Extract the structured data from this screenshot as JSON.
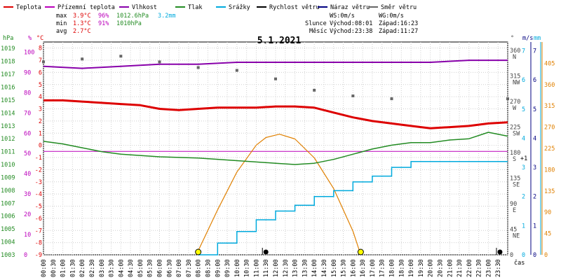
{
  "chart_data": {
    "type": "line",
    "title": "5.1.2021",
    "legend": [
      {
        "label": "Teplota",
        "color": "#dd0000"
      },
      {
        "label": "Přízemní teplota",
        "color": "#bb00bb"
      },
      {
        "label": "Vlhkost",
        "color": "#8800aa"
      },
      {
        "label": "Tlak",
        "color": "#228b22"
      },
      {
        "label": "Srážky",
        "color": "#00aadd"
      },
      {
        "label": "Rychlost větru",
        "color": "#000000"
      },
      {
        "label": "Náraz větru",
        "color": "#000080"
      },
      {
        "label": "Směr větru",
        "color": "#666666"
      }
    ],
    "stats": {
      "max": {
        "label": "max",
        "temp": "3.9°C",
        "hum": "96%",
        "press": "1012.6hPa",
        "rain": "3.2mm"
      },
      "min": {
        "label": "min",
        "temp": "1.3°C",
        "hum": "91%",
        "press": "1010hPa"
      },
      "avg": {
        "label": "avg",
        "temp": "2.7°C"
      }
    },
    "wind_info": {
      "ws": "WS:0m/s",
      "wg": "WG:0m/s"
    },
    "sun": {
      "label": "Slunce",
      "rise": "Východ:08:01",
      "set": "Západ:16:23"
    },
    "moon": {
      "label": "Měsíc",
      "rise": "Východ:23:38",
      "set": "Západ:11:27"
    },
    "axes": {
      "hpa": {
        "label": "hPa",
        "ticks": [
          "1019",
          "1018",
          "1017",
          "1016",
          "1015",
          "1014",
          "1013",
          "1012",
          "1011",
          "1010",
          "1009",
          "1008",
          "1007",
          "1006",
          "1005",
          "1004",
          "1003"
        ],
        "color": "#228b22"
      },
      "pct": {
        "label": "%",
        "ticks": [
          "100",
          "90",
          "80",
          "70",
          "60",
          "50",
          "40",
          "30",
          "20",
          "10",
          "0"
        ],
        "color": "#bb00bb"
      },
      "temp": {
        "label": "°C",
        "ticks": [
          "8",
          "7",
          "6",
          "5",
          "4",
          "3",
          "2",
          "1",
          "0",
          "-1",
          "-2",
          "-3",
          "-4",
          "-5",
          "-6",
          "-7",
          "-8",
          "-9"
        ],
        "color": "#dd0000"
      },
      "dir": {
        "label": "°",
        "ticks": [
          "360",
          "315",
          "270",
          "225",
          "180",
          "135",
          "90",
          "45",
          "0"
        ],
        "names": [
          "N",
          "NW",
          "W",
          "SW",
          "S",
          "SE",
          "E",
          "NE"
        ],
        "color": "#444444"
      },
      "ms": {
        "label": "m/s",
        "ticks": [
          "7",
          "6",
          "5",
          "4",
          "3",
          "2",
          "1",
          "0"
        ],
        "color": "#000080"
      },
      "mm": {
        "label": "mm",
        "ticks": [
          "7",
          "6",
          "5",
          "4",
          "3",
          "2",
          "1",
          "0"
        ],
        "color": "#00aadd"
      },
      "sunalt": {
        "ticks": [
          "405",
          "360",
          "315",
          "270",
          "225",
          "180",
          "135",
          "90",
          "45",
          "0"
        ],
        "color": "#e08000"
      },
      "x": {
        "label": "čas",
        "ticks": [
          "00:00",
          "00:30",
          "01:00",
          "01:30",
          "02:00",
          "02:30",
          "03:00",
          "03:30",
          "04:00",
          "04:30",
          "05:00",
          "05:30",
          "06:00",
          "06:30",
          "07:00",
          "07:30",
          "08:00",
          "08:30",
          "09:00",
          "09:30",
          "10:00",
          "10:30",
          "11:00",
          "11:30",
          "12:00",
          "12:30",
          "13:00",
          "13:30",
          "14:00",
          "14:30",
          "15:00",
          "15:30",
          "16:00",
          "16:30",
          "17:00",
          "17:30",
          "18:00",
          "18:30",
          "19:00",
          "19:30",
          "20:00",
          "20:30",
          "21:00",
          "21:30",
          "22:00",
          "22:30",
          "23:00",
          "23:30"
        ]
      }
    },
    "series": {
      "temperature": [
        [
          0,
          3.7
        ],
        [
          1,
          3.7
        ],
        [
          2,
          3.6
        ],
        [
          3,
          3.5
        ],
        [
          4,
          3.4
        ],
        [
          5,
          3.3
        ],
        [
          6,
          3.0
        ],
        [
          7,
          2.9
        ],
        [
          8,
          3.0
        ],
        [
          9,
          3.1
        ],
        [
          10,
          3.1
        ],
        [
          11,
          3.1
        ],
        [
          12,
          3.2
        ],
        [
          13,
          3.2
        ],
        [
          14,
          3.1
        ],
        [
          15,
          2.7
        ],
        [
          16,
          2.3
        ],
        [
          17,
          2.0
        ],
        [
          18,
          1.8
        ],
        [
          19,
          1.6
        ],
        [
          20,
          1.4
        ],
        [
          21,
          1.5
        ],
        [
          22,
          1.6
        ],
        [
          23,
          1.8
        ],
        [
          24,
          1.9
        ]
      ],
      "humidity": [
        [
          0,
          93
        ],
        [
          2,
          92
        ],
        [
          4,
          93
        ],
        [
          6,
          94
        ],
        [
          8,
          94
        ],
        [
          10,
          95
        ],
        [
          12,
          95
        ],
        [
          14,
          95
        ],
        [
          16,
          95
        ],
        [
          18,
          95
        ],
        [
          20,
          95
        ],
        [
          22,
          96
        ],
        [
          24,
          96
        ]
      ],
      "dewpoint_pct": [
        [
          0,
          51
        ],
        [
          24,
          51
        ]
      ],
      "pressure": [
        [
          0,
          1011.8
        ],
        [
          1,
          1011.6
        ],
        [
          2,
          1011.3
        ],
        [
          3,
          1011.0
        ],
        [
          4,
          1010.8
        ],
        [
          6,
          1010.6
        ],
        [
          8,
          1010.5
        ],
        [
          10,
          1010.3
        ],
        [
          12,
          1010.1
        ],
        [
          13,
          1010.0
        ],
        [
          14,
          1010.1
        ],
        [
          15,
          1010.4
        ],
        [
          16,
          1010.8
        ],
        [
          17,
          1011.2
        ],
        [
          18,
          1011.5
        ],
        [
          19,
          1011.7
        ],
        [
          20,
          1011.7
        ],
        [
          21,
          1011.9
        ],
        [
          22,
          1012.0
        ],
        [
          23,
          1012.5
        ],
        [
          24,
          1012.2
        ]
      ],
      "rain_mm": [
        [
          8,
          0
        ],
        [
          9,
          0.4
        ],
        [
          10,
          0.8
        ],
        [
          11,
          1.2
        ],
        [
          12,
          1.5
        ],
        [
          13,
          1.7
        ],
        [
          14,
          2.0
        ],
        [
          15,
          2.2
        ],
        [
          16,
          2.5
        ],
        [
          17,
          2.7
        ],
        [
          18,
          3.0
        ],
        [
          19,
          3.2
        ],
        [
          24,
          3.2
        ]
      ],
      "sun_altitude": [
        [
          7.9,
          0
        ],
        [
          9,
          95
        ],
        [
          10,
          175
        ],
        [
          11,
          232
        ],
        [
          11.5,
          248
        ],
        [
          12.2,
          255
        ],
        [
          13,
          245
        ],
        [
          14,
          205
        ],
        [
          15,
          140
        ],
        [
          16,
          50
        ],
        [
          16.4,
          0
        ]
      ],
      "wind_dir_deg": [
        [
          0,
          340
        ],
        [
          2,
          345
        ],
        [
          4,
          350
        ],
        [
          6,
          340
        ],
        [
          8,
          330
        ],
        [
          10,
          325
        ],
        [
          12,
          310
        ],
        [
          14,
          290
        ],
        [
          16,
          280
        ],
        [
          18,
          275
        ],
        [
          24,
          275
        ]
      ]
    },
    "markers": [
      {
        "x": 8.0,
        "kind": "sunrise"
      },
      {
        "x": 16.4,
        "kind": "sunset"
      },
      {
        "x": 11.5,
        "kind": "moonset"
      },
      {
        "x": 23.6,
        "kind": "moonrise"
      }
    ],
    "ylim": {
      "temp": [
        -9,
        8.5
      ],
      "hpa": [
        1003,
        1019.5
      ],
      "pct": [
        0,
        105
      ],
      "dir": [
        0,
        375
      ],
      "mm": [
        0,
        7.3
      ],
      "sunalt": [
        0,
        450
      ]
    },
    "xlim": [
      0,
      24
    ]
  }
}
